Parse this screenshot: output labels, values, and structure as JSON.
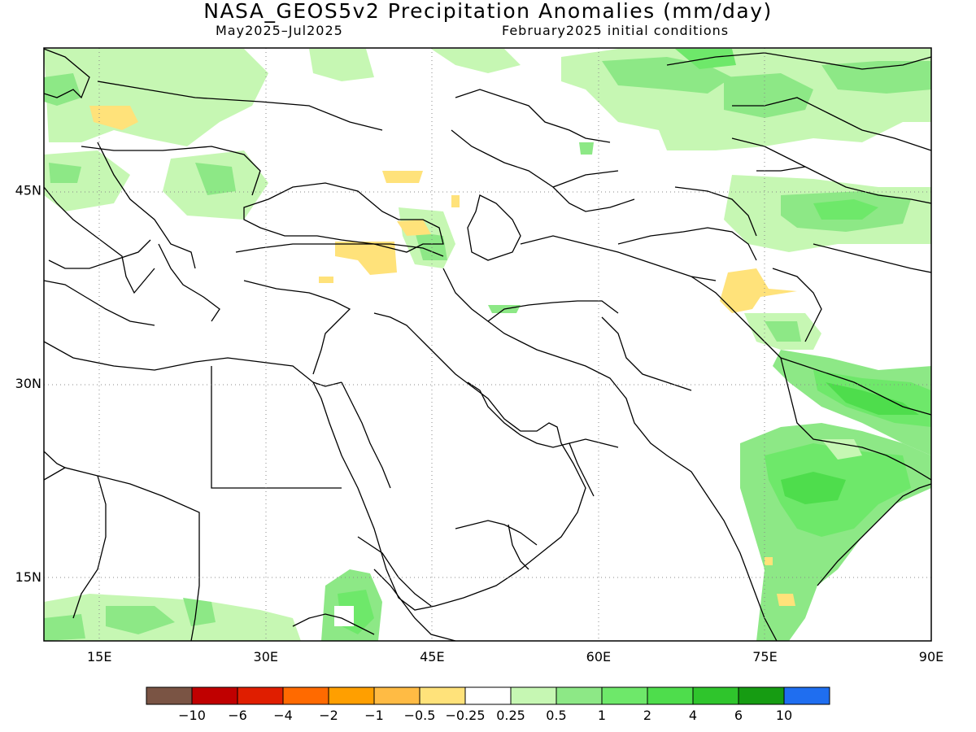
{
  "title": "NASA_GEOS5v2 Precipitation Anomalies (mm/day)",
  "subtitle_left": "May2025–Jul2025",
  "subtitle_right": "February2025 initial conditions",
  "map": {
    "lon_range": [
      10,
      90
    ],
    "lat_range": [
      10,
      56
    ],
    "lat_ticks": [
      {
        "value": 45,
        "label": "45N"
      },
      {
        "value": 30,
        "label": "30N"
      },
      {
        "value": 15,
        "label": "15N"
      }
    ],
    "lon_ticks": [
      {
        "value": 15,
        "label": "15E"
      },
      {
        "value": 30,
        "label": "30E"
      },
      {
        "value": 45,
        "label": "45E"
      },
      {
        "value": 60,
        "label": "60E"
      },
      {
        "value": 75,
        "label": "75E"
      },
      {
        "value": 90,
        "label": "90E"
      }
    ],
    "grid": "dotted"
  },
  "colorbar": {
    "colors": [
      "#7a5444",
      "#c00000",
      "#e01e00",
      "#ff6a00",
      "#ff9f00",
      "#ffbb44",
      "#ffe27a",
      "#ffffff",
      "#c6f7b3",
      "#8de886",
      "#6ee86a",
      "#4edd4c",
      "#2fc52c",
      "#169c12",
      "#1f6ef0"
    ],
    "labels": [
      "−10",
      "−6",
      "−4",
      "−2",
      "−1",
      "−0.5",
      "−0.25",
      "0.25",
      "0.5",
      "1",
      "2",
      "4",
      "6",
      "10"
    ]
  }
}
